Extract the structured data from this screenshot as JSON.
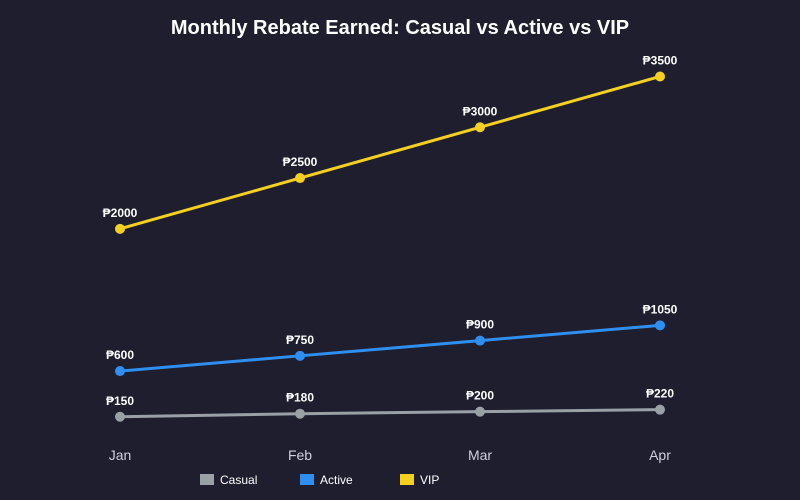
{
  "chart_data": {
    "type": "line",
    "title": "Monthly Rebate Earned: Casual vs Active vs VIP",
    "xlabel": "",
    "ylabel": "",
    "categories": [
      "Jan",
      "Feb",
      "Mar",
      "Apr"
    ],
    "currency_prefix": "₱",
    "ylim": [
      0,
      3800
    ],
    "grid": false,
    "legend_position": "bottom-center",
    "series": [
      {
        "name": "Casual",
        "color": "#9aa0a6",
        "values": [
          150,
          180,
          200,
          220
        ]
      },
      {
        "name": "Active",
        "color": "#2f8ff0",
        "values": [
          600,
          750,
          900,
          1050
        ]
      },
      {
        "name": "VIP",
        "color": "#f5d020",
        "values": [
          2000,
          2500,
          3000,
          3500
        ]
      }
    ]
  }
}
